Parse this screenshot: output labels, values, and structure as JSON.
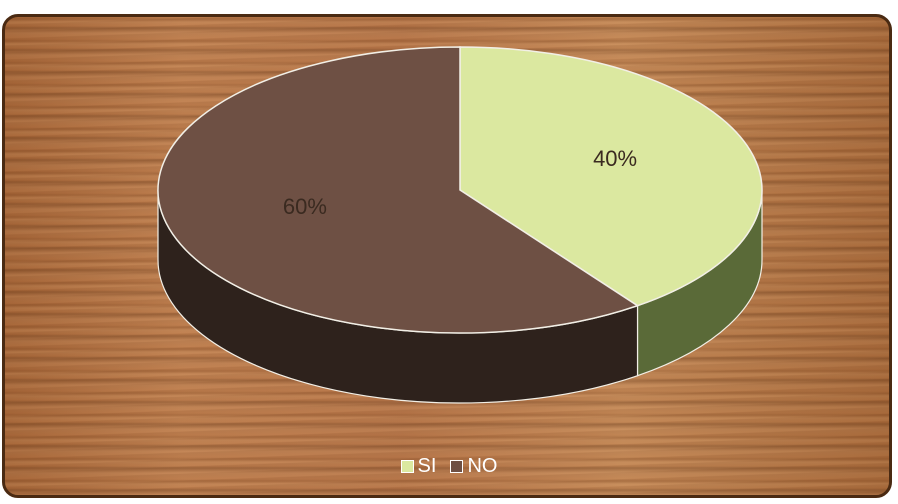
{
  "chart_data": {
    "type": "pie",
    "style": "3d",
    "categories": [
      "SI",
      "NO"
    ],
    "values": [
      40,
      60
    ],
    "data_labels": [
      "40%",
      "60%"
    ],
    "colors": [
      "#dbe8a0",
      "#6e5044"
    ],
    "side_colors": [
      "#5a6a38",
      "#2e221c"
    ],
    "legend": "bottom",
    "title": ""
  },
  "legend": {
    "items": [
      {
        "label": "SI",
        "color": "#dbe8a0"
      },
      {
        "label": "NO",
        "color": "#6e5044"
      }
    ]
  }
}
